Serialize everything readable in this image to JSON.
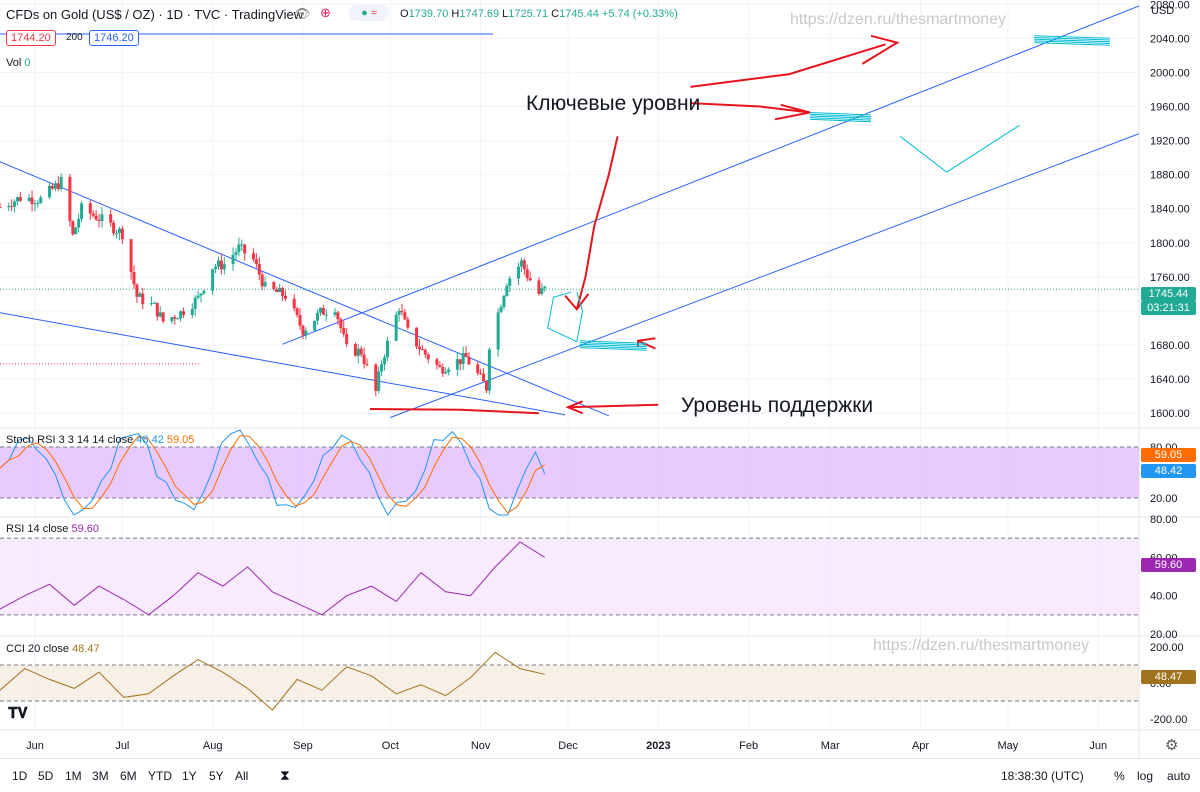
{
  "header": {
    "symbol_title": "CFDs on Gold (US$ / OZ) · 1D · TVC · TradingView",
    "ohlc": {
      "o_label": "O",
      "o": "1739.70",
      "h_label": "H",
      "h": "1747.69",
      "l_label": "L",
      "l": "1725.71",
      "c_label": "C",
      "c": "1745.44",
      "change": "+5.74 (+0.33%)"
    },
    "bid": "1744.20",
    "spread": "200",
    "ask": "1746.20",
    "vol_label": "Vol",
    "vol_value": "0"
  },
  "currency_label": "USD",
  "price_badge": {
    "value": "1745.44",
    "countdown": "03:21:31",
    "color": "#22ab94"
  },
  "panes": {
    "stoch": {
      "label": "Stoch RSI",
      "params": "3 3 14 14 close",
      "k": "48.42",
      "d": "59.05"
    },
    "rsi": {
      "label": "RSI",
      "params": "14 close",
      "value": "59.60"
    },
    "cci": {
      "label": "CCI",
      "params": "20 close",
      "value": "48.47"
    }
  },
  "annotations": {
    "key_levels": "Ключевые уровни",
    "support_level": "Уровень поддержки",
    "watermark": "https://dzen.ru/thesmartmoney"
  },
  "bottom_bar": {
    "ranges": [
      "1D",
      "5D",
      "1M",
      "3M",
      "6M",
      "YTD",
      "1Y",
      "5Y",
      "All"
    ],
    "time": "18:38:30 (UTC)",
    "percent": "%",
    "log": "log",
    "auto": "auto"
  },
  "chart_data": [
    {
      "type": "candlestick",
      "title": "CFDs on Gold (US$ / OZ) · 1D · TVC · TradingView",
      "x_ticks": [
        "Jun",
        "Jul",
        "Aug",
        "Sep",
        "Oct",
        "Nov",
        "Dec",
        "2023",
        "Feb",
        "Mar",
        "Apr",
        "May",
        "Jun"
      ],
      "y_ticks": [
        "2080.00",
        "2040.00",
        "2000.00",
        "1960.00",
        "1920.00",
        "1880.00",
        "1840.00",
        "1800.00",
        "1760.00",
        "1720.00",
        "1680.00",
        "1640.00",
        "1600.00"
      ],
      "ylim": [
        1585,
        2085
      ],
      "xlim": [
        "2022-05-20",
        "2023-06-15"
      ],
      "series": [
        {
          "name": "",
          "close_path": [
            [
              "2022-05-20",
              1842
            ],
            [
              "2022-05-27",
              1853
            ],
            [
              "2022-06-03",
              1851
            ],
            [
              "2022-06-10",
              1872
            ],
            [
              "2022-06-14",
              1808
            ],
            [
              "2022-06-17",
              1840
            ],
            [
              "2022-06-24",
              1827
            ],
            [
              "2022-07-01",
              1811
            ],
            [
              "2022-07-06",
              1737
            ],
            [
              "2022-07-12",
              1725
            ],
            [
              "2022-07-15",
              1708
            ],
            [
              "2022-07-21",
              1718
            ],
            [
              "2022-07-27",
              1735
            ],
            [
              "2022-08-01",
              1772
            ],
            [
              "2022-08-05",
              1775
            ],
            [
              "2022-08-10",
              1794
            ],
            [
              "2022-08-15",
              1780
            ],
            [
              "2022-08-19",
              1747
            ],
            [
              "2022-08-26",
              1738
            ],
            [
              "2022-09-01",
              1697
            ],
            [
              "2022-09-07",
              1718
            ],
            [
              "2022-09-12",
              1725
            ],
            [
              "2022-09-16",
              1675
            ],
            [
              "2022-09-21",
              1672
            ],
            [
              "2022-09-26",
              1625
            ],
            [
              "2022-09-28",
              1660
            ],
            [
              "2022-10-04",
              1725
            ],
            [
              "2022-10-07",
              1695
            ],
            [
              "2022-10-12",
              1673
            ],
            [
              "2022-10-18",
              1652
            ],
            [
              "2022-10-21",
              1657
            ],
            [
              "2022-10-27",
              1665
            ],
            [
              "2022-11-03",
              1630
            ],
            [
              "2022-11-04",
              1681
            ],
            [
              "2022-11-10",
              1755
            ],
            [
              "2022-11-15",
              1777
            ],
            [
              "2022-11-17",
              1762
            ],
            [
              "2022-11-21",
              1740
            ],
            [
              "2022-11-23",
              1745.44
            ]
          ]
        }
      ]
    },
    {
      "type": "line",
      "title": "Stoch RSI",
      "ylim": [
        0,
        100
      ],
      "y_ticks": [
        "80.00",
        "20.00"
      ],
      "series": [
        {
          "name": "K",
          "last": 48.42
        },
        {
          "name": "D",
          "last": 59.05
        }
      ]
    },
    {
      "type": "line",
      "title": "RSI",
      "ylim": [
        20,
        80
      ],
      "y_ticks": [
        "80.00",
        "60.00",
        "40.00",
        "20.00"
      ],
      "series": [
        {
          "name": "RSI",
          "values": [
            33,
            40,
            46,
            35,
            45,
            38,
            30,
            40,
            52,
            45,
            55,
            42,
            36,
            30,
            40,
            45,
            37,
            52,
            42,
            40,
            55,
            68,
            60
          ]
        }
      ]
    },
    {
      "type": "line",
      "title": "CCI",
      "ylim": [
        -250,
        250
      ],
      "y_ticks": [
        "200.00",
        "0.00",
        "-200.00"
      ],
      "series": [
        {
          "name": "CCI",
          "values": [
            -40,
            80,
            20,
            -30,
            60,
            -80,
            -60,
            40,
            130,
            60,
            -30,
            -150,
            20,
            -40,
            90,
            40,
            -60,
            -10,
            -70,
            30,
            170,
            80,
            48.47
          ]
        }
      ]
    }
  ]
}
